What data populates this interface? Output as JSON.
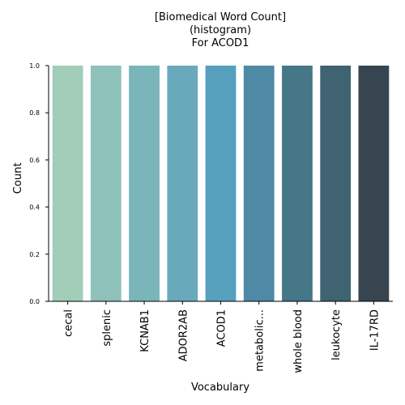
{
  "chart_data": {
    "type": "bar",
    "title_lines": [
      "[Biomedical Word Count]",
      "(histogram)",
      "For ACOD1"
    ],
    "xlabel": "Vocabulary",
    "ylabel": "Count",
    "ylim": [
      0,
      1.0
    ],
    "yticks": [
      "0.0",
      "0.2",
      "0.4",
      "0.6",
      "0.8",
      "1.0"
    ],
    "categories": [
      "cecal",
      "splenic",
      "KCNAB1",
      "ADOR2AB",
      "ACOD1",
      "metabolic...",
      "whole blood",
      "leukocyte",
      "IL-17RD"
    ],
    "values": [
      1,
      1,
      1,
      1,
      1,
      1,
      1,
      1,
      1
    ],
    "colors": [
      "#a1cdb9",
      "#8dc1ba",
      "#7ab5b9",
      "#68aabb",
      "#56a0bd",
      "#4e8aa6",
      "#457786",
      "#3f6370",
      "#36454f"
    ],
    "grid": false
  }
}
